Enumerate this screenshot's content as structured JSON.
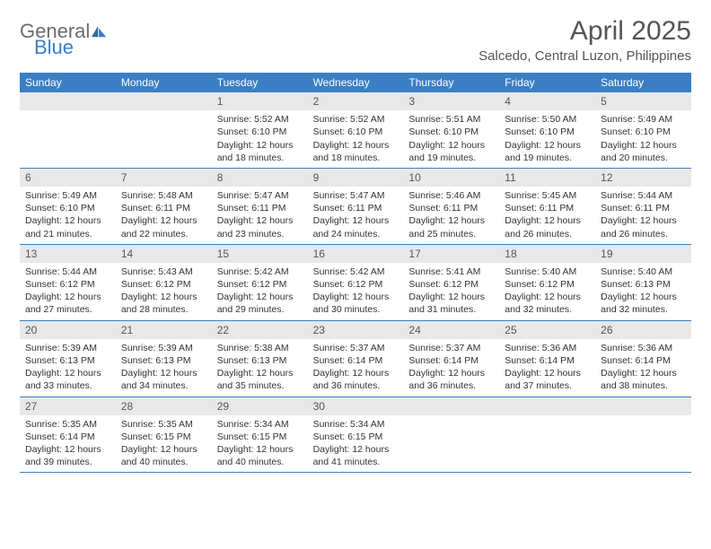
{
  "brand": {
    "part1": "General",
    "part2": "Blue"
  },
  "title": "April 2025",
  "location": "Salcedo, Central Luzon, Philippines",
  "colors": {
    "header_bg": "#3a7fc4",
    "header_text": "#ffffff",
    "daynum_bg": "#e8e8e8",
    "border": "#3a7fc4",
    "text": "#333333",
    "title_text": "#555555"
  },
  "day_names": [
    "Sunday",
    "Monday",
    "Tuesday",
    "Wednesday",
    "Thursday",
    "Friday",
    "Saturday"
  ],
  "weeks": [
    [
      null,
      null,
      {
        "n": "1",
        "sr": "5:52 AM",
        "ss": "6:10 PM",
        "dl": "12 hours and 18 minutes."
      },
      {
        "n": "2",
        "sr": "5:52 AM",
        "ss": "6:10 PM",
        "dl": "12 hours and 18 minutes."
      },
      {
        "n": "3",
        "sr": "5:51 AM",
        "ss": "6:10 PM",
        "dl": "12 hours and 19 minutes."
      },
      {
        "n": "4",
        "sr": "5:50 AM",
        "ss": "6:10 PM",
        "dl": "12 hours and 19 minutes."
      },
      {
        "n": "5",
        "sr": "5:49 AM",
        "ss": "6:10 PM",
        "dl": "12 hours and 20 minutes."
      }
    ],
    [
      {
        "n": "6",
        "sr": "5:49 AM",
        "ss": "6:10 PM",
        "dl": "12 hours and 21 minutes."
      },
      {
        "n": "7",
        "sr": "5:48 AM",
        "ss": "6:11 PM",
        "dl": "12 hours and 22 minutes."
      },
      {
        "n": "8",
        "sr": "5:47 AM",
        "ss": "6:11 PM",
        "dl": "12 hours and 23 minutes."
      },
      {
        "n": "9",
        "sr": "5:47 AM",
        "ss": "6:11 PM",
        "dl": "12 hours and 24 minutes."
      },
      {
        "n": "10",
        "sr": "5:46 AM",
        "ss": "6:11 PM",
        "dl": "12 hours and 25 minutes."
      },
      {
        "n": "11",
        "sr": "5:45 AM",
        "ss": "6:11 PM",
        "dl": "12 hours and 26 minutes."
      },
      {
        "n": "12",
        "sr": "5:44 AM",
        "ss": "6:11 PM",
        "dl": "12 hours and 26 minutes."
      }
    ],
    [
      {
        "n": "13",
        "sr": "5:44 AM",
        "ss": "6:12 PM",
        "dl": "12 hours and 27 minutes."
      },
      {
        "n": "14",
        "sr": "5:43 AM",
        "ss": "6:12 PM",
        "dl": "12 hours and 28 minutes."
      },
      {
        "n": "15",
        "sr": "5:42 AM",
        "ss": "6:12 PM",
        "dl": "12 hours and 29 minutes."
      },
      {
        "n": "16",
        "sr": "5:42 AM",
        "ss": "6:12 PM",
        "dl": "12 hours and 30 minutes."
      },
      {
        "n": "17",
        "sr": "5:41 AM",
        "ss": "6:12 PM",
        "dl": "12 hours and 31 minutes."
      },
      {
        "n": "18",
        "sr": "5:40 AM",
        "ss": "6:12 PM",
        "dl": "12 hours and 32 minutes."
      },
      {
        "n": "19",
        "sr": "5:40 AM",
        "ss": "6:13 PM",
        "dl": "12 hours and 32 minutes."
      }
    ],
    [
      {
        "n": "20",
        "sr": "5:39 AM",
        "ss": "6:13 PM",
        "dl": "12 hours and 33 minutes."
      },
      {
        "n": "21",
        "sr": "5:39 AM",
        "ss": "6:13 PM",
        "dl": "12 hours and 34 minutes."
      },
      {
        "n": "22",
        "sr": "5:38 AM",
        "ss": "6:13 PM",
        "dl": "12 hours and 35 minutes."
      },
      {
        "n": "23",
        "sr": "5:37 AM",
        "ss": "6:14 PM",
        "dl": "12 hours and 36 minutes."
      },
      {
        "n": "24",
        "sr": "5:37 AM",
        "ss": "6:14 PM",
        "dl": "12 hours and 36 minutes."
      },
      {
        "n": "25",
        "sr": "5:36 AM",
        "ss": "6:14 PM",
        "dl": "12 hours and 37 minutes."
      },
      {
        "n": "26",
        "sr": "5:36 AM",
        "ss": "6:14 PM",
        "dl": "12 hours and 38 minutes."
      }
    ],
    [
      {
        "n": "27",
        "sr": "5:35 AM",
        "ss": "6:14 PM",
        "dl": "12 hours and 39 minutes."
      },
      {
        "n": "28",
        "sr": "5:35 AM",
        "ss": "6:15 PM",
        "dl": "12 hours and 40 minutes."
      },
      {
        "n": "29",
        "sr": "5:34 AM",
        "ss": "6:15 PM",
        "dl": "12 hours and 40 minutes."
      },
      {
        "n": "30",
        "sr": "5:34 AM",
        "ss": "6:15 PM",
        "dl": "12 hours and 41 minutes."
      },
      null,
      null,
      null
    ]
  ],
  "labels": {
    "sunrise": "Sunrise:",
    "sunset": "Sunset:",
    "daylight": "Daylight:"
  }
}
